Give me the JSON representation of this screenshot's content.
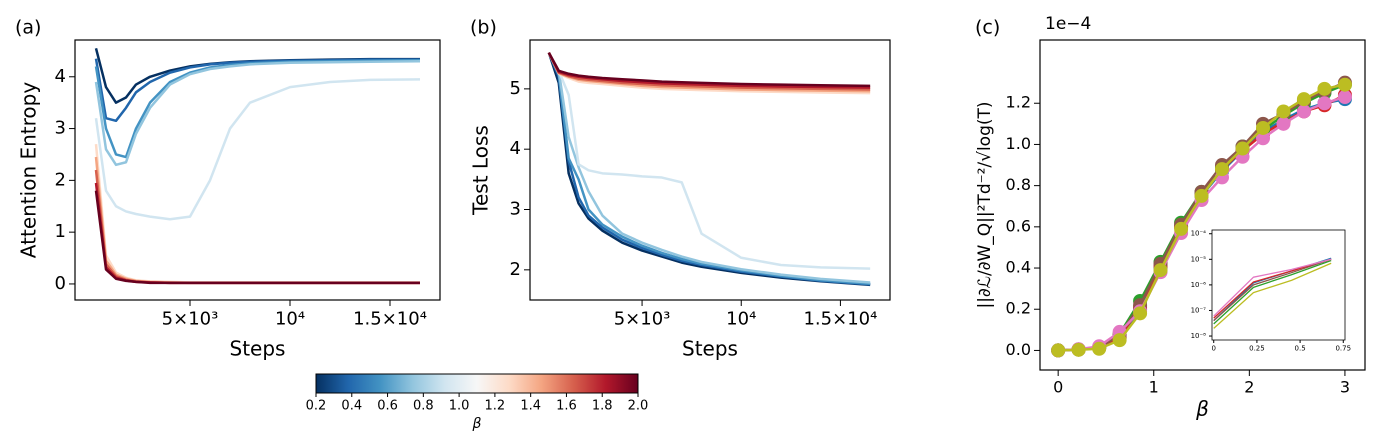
{
  "chart_data": [
    {
      "type": "line",
      "panel_label": "(a)",
      "ylabel": "Attention Entropy",
      "xlabel": "Steps",
      "x": [
        300,
        800,
        1300,
        1800,
        2300,
        3000,
        4000,
        5000,
        6000,
        7000,
        8000,
        10000,
        12000,
        14000,
        16500
      ],
      "xlim": [
        -750,
        17500
      ],
      "xticks": [
        {
          "value": 5000,
          "label": "5×10³"
        },
        {
          "value": 10000,
          "label": "10⁴"
        },
        {
          "value": 15000,
          "label": "1.5×10⁴"
        }
      ],
      "ylim": [
        -0.31,
        4.71
      ],
      "yticks": [
        0,
        1,
        2,
        3,
        4
      ],
      "series": [
        {
          "color": "#053061",
          "values": [
            4.55,
            3.8,
            3.5,
            3.6,
            3.85,
            4.0,
            4.12,
            4.2,
            4.25,
            4.28,
            4.3,
            4.32,
            4.33,
            4.34,
            4.34
          ]
        },
        {
          "color": "#2166ac",
          "values": [
            4.35,
            3.2,
            3.15,
            3.4,
            3.7,
            3.9,
            4.08,
            4.18,
            4.24,
            4.27,
            4.29,
            4.31,
            4.32,
            4.33,
            4.33
          ]
        },
        {
          "color": "#4393c3",
          "values": [
            4.2,
            3.0,
            2.5,
            2.45,
            3.0,
            3.5,
            3.9,
            4.08,
            4.18,
            4.23,
            4.26,
            4.29,
            4.3,
            4.31,
            4.32
          ]
        },
        {
          "color": "#92c5de",
          "values": [
            3.9,
            2.6,
            2.3,
            2.35,
            2.9,
            3.4,
            3.85,
            4.05,
            4.15,
            4.2,
            4.24,
            4.27,
            4.28,
            4.29,
            4.3
          ]
        },
        {
          "color": "#d1e5f0",
          "values": [
            3.2,
            1.8,
            1.5,
            1.4,
            1.35,
            1.3,
            1.25,
            1.3,
            2.0,
            3.0,
            3.5,
            3.8,
            3.9,
            3.94,
            3.95
          ]
        },
        {
          "color": "#fddbc7",
          "values": [
            2.7,
            0.55,
            0.22,
            0.12,
            0.07,
            0.05,
            0.04,
            0.03,
            0.03,
            0.03,
            0.03,
            0.03,
            0.03,
            0.03,
            0.03
          ]
        },
        {
          "color": "#f4a582",
          "values": [
            2.45,
            0.45,
            0.18,
            0.1,
            0.06,
            0.04,
            0.03,
            0.02,
            0.02,
            0.02,
            0.02,
            0.02,
            0.02,
            0.02,
            0.02
          ]
        },
        {
          "color": "#d6604d",
          "values": [
            2.2,
            0.38,
            0.15,
            0.08,
            0.05,
            0.03,
            0.02,
            0.02,
            0.02,
            0.02,
            0.02,
            0.02,
            0.02,
            0.02,
            0.02
          ]
        },
        {
          "color": "#b2182b",
          "values": [
            1.95,
            0.32,
            0.12,
            0.07,
            0.04,
            0.03,
            0.02,
            0.02,
            0.02,
            0.02,
            0.02,
            0.02,
            0.02,
            0.02,
            0.02
          ]
        },
        {
          "color": "#67001f",
          "values": [
            1.8,
            0.28,
            0.1,
            0.06,
            0.04,
            0.02,
            0.02,
            0.02,
            0.02,
            0.02,
            0.02,
            0.02,
            0.02,
            0.02,
            0.02
          ]
        }
      ]
    },
    {
      "type": "line",
      "panel_label": "(b)",
      "ylabel": "Test Loss",
      "xlabel": "Steps",
      "x": [
        300,
        800,
        1300,
        1800,
        2300,
        3000,
        4000,
        5000,
        6000,
        7000,
        8000,
        10000,
        12000,
        14000,
        16500
      ],
      "xlim": [
        -650,
        17500
      ],
      "xticks": [
        {
          "value": 5000,
          "label": "5×10³"
        },
        {
          "value": 10000,
          "label": "10⁴"
        },
        {
          "value": 15000,
          "label": "1.5×10⁴"
        }
      ],
      "ylim": [
        1.5,
        5.81
      ],
      "yticks": [
        2,
        3,
        4,
        5
      ],
      "series": [
        {
          "color": "#053061",
          "values": [
            5.6,
            5.1,
            3.6,
            3.1,
            2.85,
            2.65,
            2.45,
            2.32,
            2.22,
            2.12,
            2.05,
            1.95,
            1.87,
            1.81,
            1.75
          ]
        },
        {
          "color": "#2166ac",
          "values": [
            5.6,
            5.2,
            3.8,
            3.2,
            2.9,
            2.7,
            2.5,
            2.36,
            2.25,
            2.15,
            2.08,
            1.97,
            1.89,
            1.82,
            1.76
          ]
        },
        {
          "color": "#4393c3",
          "values": [
            5.6,
            5.25,
            3.85,
            3.5,
            3.0,
            2.75,
            2.55,
            2.4,
            2.28,
            2.18,
            2.1,
            1.99,
            1.9,
            1.83,
            1.77
          ]
        },
        {
          "color": "#92c5de",
          "values": [
            5.6,
            5.3,
            4.2,
            3.7,
            3.3,
            2.9,
            2.6,
            2.45,
            2.33,
            2.22,
            2.13,
            2.01,
            1.92,
            1.85,
            1.79
          ]
        },
        {
          "color": "#d1e5f0",
          "values": [
            5.6,
            5.3,
            4.9,
            3.75,
            3.65,
            3.6,
            3.58,
            3.55,
            3.53,
            3.45,
            2.6,
            2.2,
            2.08,
            2.04,
            2.02
          ]
        },
        {
          "color": "#fddbc7",
          "values": [
            5.6,
            5.25,
            5.18,
            5.12,
            5.1,
            5.08,
            5.05,
            5.02,
            5.0,
            4.99,
            4.98,
            4.96,
            4.95,
            4.94,
            4.93
          ]
        },
        {
          "color": "#f4a582",
          "values": [
            5.6,
            5.26,
            5.2,
            5.15,
            5.13,
            5.11,
            5.08,
            5.05,
            5.03,
            5.02,
            5.01,
            4.99,
            4.98,
            4.97,
            4.96
          ]
        },
        {
          "color": "#d6604d",
          "values": [
            5.6,
            5.27,
            5.21,
            5.17,
            5.15,
            5.13,
            5.1,
            5.08,
            5.06,
            5.05,
            5.04,
            5.02,
            5.01,
            5.0,
            4.99
          ]
        },
        {
          "color": "#b2182b",
          "values": [
            5.6,
            5.28,
            5.23,
            5.2,
            5.18,
            5.16,
            5.13,
            5.11,
            5.09,
            5.08,
            5.07,
            5.05,
            5.04,
            5.03,
            5.02
          ]
        },
        {
          "color": "#67001f",
          "values": [
            5.6,
            5.3,
            5.25,
            5.22,
            5.2,
            5.18,
            5.16,
            5.14,
            5.12,
            5.11,
            5.1,
            5.08,
            5.07,
            5.06,
            5.05
          ]
        }
      ]
    },
    {
      "type": "line",
      "panel_label": "(c)",
      "ylabel": "||∂ℒ/∂W_Q||²Td⁻²/√log(T)",
      "xlabel": "β",
      "offset_label": "1e−4",
      "markers": true,
      "x": [
        0,
        0.214,
        0.429,
        0.643,
        0.857,
        1.071,
        1.286,
        1.5,
        1.714,
        1.929,
        2.143,
        2.357,
        2.571,
        2.786,
        3.0
      ],
      "xlim": [
        -0.19,
        3.21
      ],
      "xticks": [
        0,
        1,
        2,
        3
      ],
      "ylim": [
        -0.095,
        1.507
      ],
      "yticks": [
        {
          "value": 0,
          "label": "0.0"
        },
        0.2,
        0.4,
        0.6,
        0.8,
        {
          "value": 1,
          "label": "1.0"
        },
        1.2
      ],
      "series": [
        {
          "color": "#1f77b4",
          "values": [
            0,
            0.004,
            0.012,
            0.06,
            0.2,
            0.4,
            0.6,
            0.75,
            0.87,
            0.97,
            1.06,
            1.12,
            1.17,
            1.2,
            1.22
          ]
        },
        {
          "color": "#d62728",
          "values": [
            0,
            0.004,
            0.012,
            0.065,
            0.21,
            0.41,
            0.6,
            0.76,
            0.88,
            0.97,
            1.05,
            1.11,
            1.16,
            1.19,
            1.24
          ]
        },
        {
          "color": "#2ca02c",
          "values": [
            0,
            0.005,
            0.015,
            0.08,
            0.24,
            0.43,
            0.62,
            0.77,
            0.89,
            0.99,
            1.07,
            1.14,
            1.2,
            1.25,
            1.29
          ]
        },
        {
          "color": "#8c564b",
          "values": [
            0,
            0.005,
            0.014,
            0.075,
            0.22,
            0.42,
            0.61,
            0.77,
            0.9,
            0.99,
            1.1,
            1.15,
            1.21,
            1.26,
            1.3
          ]
        },
        {
          "color": "#e377c2",
          "values": [
            0,
            0.006,
            0.02,
            0.09,
            0.19,
            0.38,
            0.57,
            0.73,
            0.84,
            0.94,
            1.03,
            1.1,
            1.16,
            1.2,
            1.23
          ]
        },
        {
          "color": "#bcbd22",
          "values": [
            0,
            0.003,
            0.008,
            0.05,
            0.18,
            0.39,
            0.59,
            0.75,
            0.88,
            0.98,
            1.08,
            1.16,
            1.22,
            1.27,
            1.29
          ]
        }
      ],
      "inset": {
        "type": "line",
        "ylog": true,
        "x": [
          0,
          0.23,
          0.45,
          0.68
        ],
        "xlim": [
          -0.01,
          0.76
        ],
        "xticks": [
          0,
          0.25,
          0.5,
          0.75
        ],
        "ylim": [
          7e-09,
          0.00014
        ],
        "yticks": [
          {
            "value": 1e-08,
            "label": "10⁻⁸"
          },
          {
            "value": 1e-07,
            "label": "10⁻⁷"
          },
          {
            "value": 1e-06,
            "label": "10⁻⁶"
          },
          {
            "value": 1e-05,
            "label": "10⁻⁵"
          },
          {
            "value": 0.0001,
            "label": "10⁻⁴"
          }
        ],
        "series": [
          {
            "color": "#1f77b4",
            "values": [
              4e-08,
              1.2e-06,
              3.5e-06,
              1.1e-05
            ]
          },
          {
            "color": "#d62728",
            "values": [
              5e-08,
              1.3e-06,
              3.5e-06,
              1e-05
            ]
          },
          {
            "color": "#2ca02c",
            "values": [
              3e-08,
              8e-07,
              2.5e-06,
              9e-06
            ]
          },
          {
            "color": "#8c564b",
            "values": [
              4e-08,
              1e-06,
              3e-06,
              1e-05
            ]
          },
          {
            "color": "#e377c2",
            "values": [
              6e-08,
              2e-06,
              4e-06,
              1e-05
            ]
          },
          {
            "color": "#bcbd22",
            "values": [
              2e-08,
              5e-07,
              1.5e-06,
              7e-06
            ]
          }
        ]
      }
    },
    {
      "type": "colorbar",
      "label": "β",
      "xlim": [
        0.2,
        2.0
      ],
      "colors": [
        "#053061",
        "#2166ac",
        "#4393c3",
        "#92c5de",
        "#d1e5f0",
        "#f7f7f7",
        "#fddbc7",
        "#f4a582",
        "#d6604d",
        "#b2182b",
        "#67001f"
      ],
      "xticks": [
        0.2,
        0.4,
        0.6,
        0.8,
        {
          "value": 1,
          "label": "1.0"
        },
        1.2,
        1.4,
        1.6,
        1.8,
        {
          "value": 2,
          "label": "2.0"
        }
      ]
    }
  ]
}
